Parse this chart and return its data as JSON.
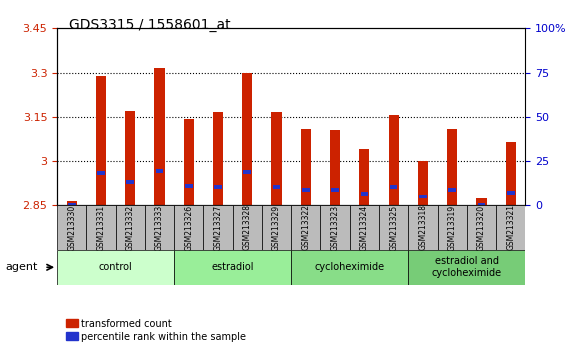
{
  "title": "GDS3315 / 1558601_at",
  "samples": [
    "GSM213330",
    "GSM213331",
    "GSM213332",
    "GSM213333",
    "GSM213326",
    "GSM213327",
    "GSM213328",
    "GSM213329",
    "GSM213322",
    "GSM213323",
    "GSM213324",
    "GSM213325",
    "GSM213318",
    "GSM213319",
    "GSM213320",
    "GSM213321"
  ],
  "red_values": [
    2.865,
    3.29,
    3.17,
    3.315,
    3.143,
    3.165,
    3.3,
    3.165,
    3.11,
    3.105,
    3.04,
    3.155,
    3.0,
    3.11,
    2.875,
    3.065
  ],
  "blue_percentile": [
    5,
    25,
    25,
    25,
    22,
    20,
    25,
    20,
    20,
    20,
    20,
    20,
    20,
    20,
    12,
    20
  ],
  "ymin": 2.85,
  "ymax": 3.45,
  "yticks": [
    2.85,
    3.0,
    3.15,
    3.3,
    3.45
  ],
  "ytick_labels": [
    "2.85",
    "3",
    "3.15",
    "3.3",
    "3.45"
  ],
  "right_yticks_pct": [
    0,
    25,
    50,
    75,
    100
  ],
  "right_ytick_labels": [
    "0",
    "25",
    "50",
    "75",
    "100%"
  ],
  "groups": [
    {
      "label": "control",
      "indices": [
        0,
        1,
        2,
        3
      ],
      "color": "#ccffcc"
    },
    {
      "label": "estradiol",
      "indices": [
        4,
        5,
        6,
        7
      ],
      "color": "#99ee99"
    },
    {
      "label": "cycloheximide",
      "indices": [
        8,
        9,
        10,
        11
      ],
      "color": "#88dd88"
    },
    {
      "label": "estradiol and\ncycloheximide",
      "indices": [
        12,
        13,
        14,
        15
      ],
      "color": "#77cc77"
    }
  ],
  "bar_color": "#cc2200",
  "blue_color": "#2233cc",
  "bg_color": "#ffffff",
  "grid_color": "#000000",
  "left_label_color": "#cc2200",
  "right_label_color": "#0000cc",
  "legend_red": "transformed count",
  "legend_blue": "percentile rank within the sample",
  "bar_width": 0.35,
  "sample_box_color": "#bbbbbb",
  "agent_label": "agent"
}
